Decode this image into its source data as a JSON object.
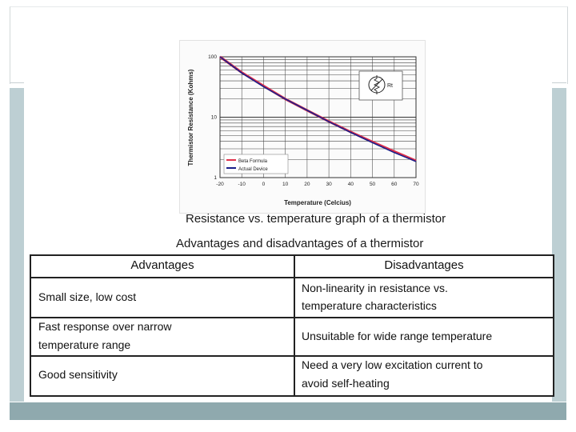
{
  "chart_data": {
    "type": "line",
    "xlabel": "Temperature (Celcius)",
    "ylabel": "Thermistor Resistance (Kohms)",
    "x_ticks": [
      -20,
      -10,
      0,
      10,
      20,
      30,
      40,
      50,
      60,
      70
    ],
    "y_ticks": [
      1,
      10,
      100
    ],
    "y_scale": "log",
    "xlim": [
      -20,
      70
    ],
    "ylim": [
      1,
      100
    ],
    "grid": true,
    "legend_position": "bottom-left",
    "x": [
      -20,
      -10,
      0,
      10,
      20,
      30,
      40,
      50,
      60,
      70
    ],
    "series": [
      {
        "name": "Beta Formula",
        "color": "#e0304a",
        "values": [
          100,
          55,
          33,
          20,
          13,
          8.5,
          5.7,
          3.9,
          2.7,
          1.9
        ]
      },
      {
        "name": "Actual Device",
        "color": "#1a1f8a",
        "values": [
          100,
          54,
          32,
          20,
          13,
          8.4,
          5.6,
          3.8,
          2.6,
          1.85
        ]
      }
    ],
    "inset_icon": "thermistor-symbol-icon",
    "inset_label": "Rt"
  },
  "caption": "Resistance vs. temperature graph of a thermistor",
  "table": {
    "title": "Advantages and disadvantages of a thermistor",
    "headers": [
      "Advantages",
      "Disadvantages"
    ],
    "rows": [
      {
        "advantage": [
          "Small size, low cost"
        ],
        "disadvantage": [
          "Non-linearity in resistance vs.",
          "temperature characteristics"
        ]
      },
      {
        "advantage": [
          "Fast response over narrow",
          "temperature range"
        ],
        "disadvantage": [
          "Unsuitable for wide range temperature"
        ]
      },
      {
        "advantage": [
          "Good sensitivity"
        ],
        "disadvantage": [
          "Need a very low excitation current to",
          "avoid self-heating"
        ]
      }
    ]
  }
}
